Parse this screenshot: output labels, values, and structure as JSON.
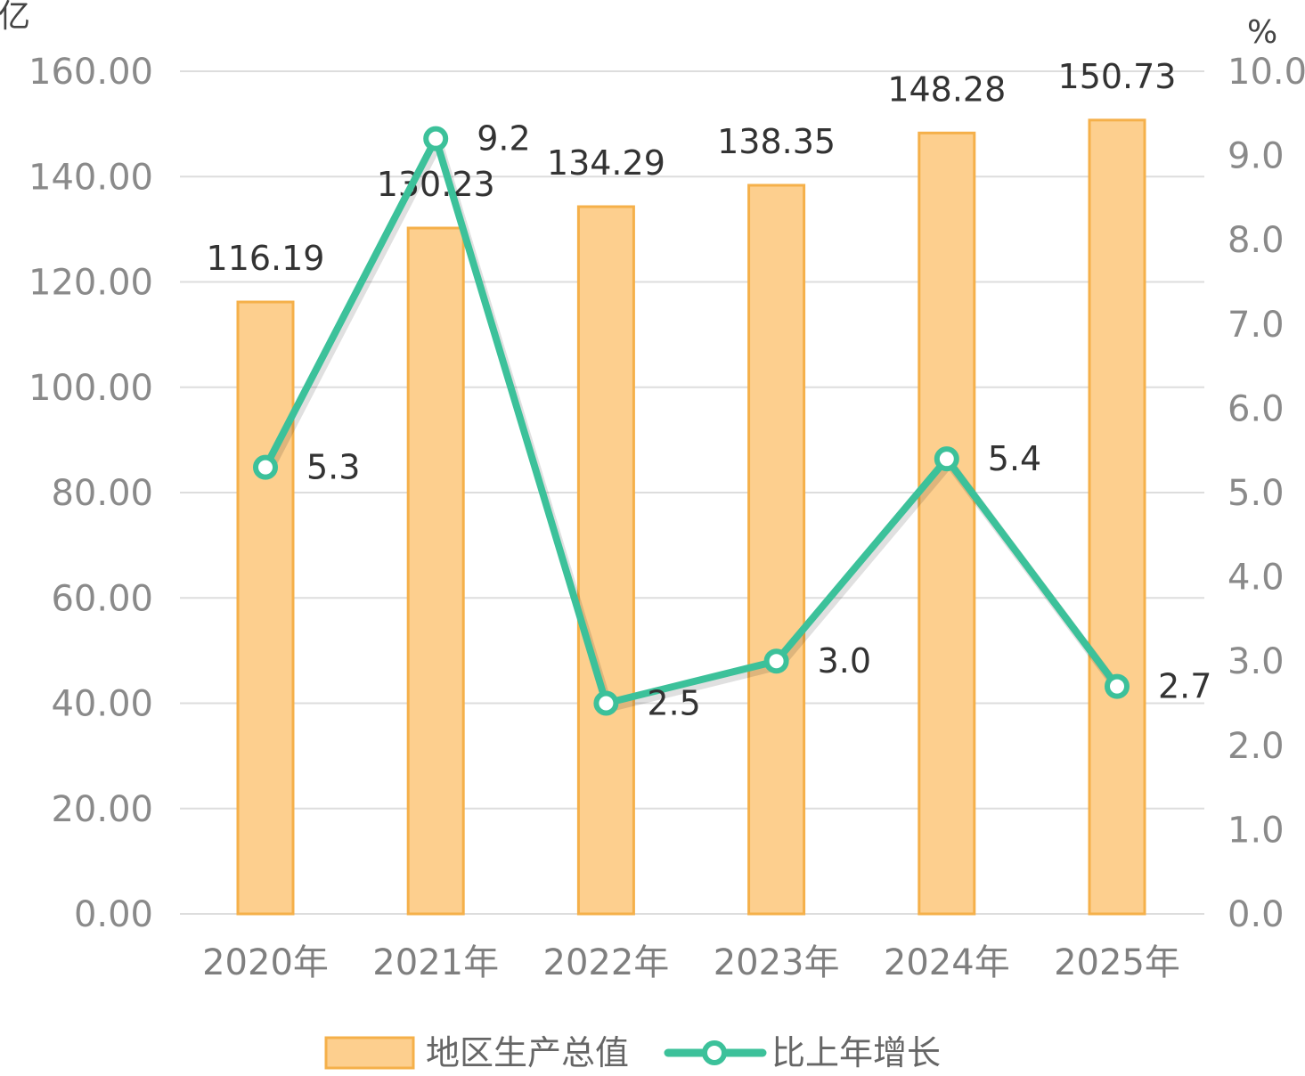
{
  "chart_data": {
    "type": "bar",
    "categories": [
      "2020年",
      "2021年",
      "2022年",
      "2023年",
      "2024年",
      "2025年"
    ],
    "series": [
      {
        "name": "地区生产总值",
        "type": "bar",
        "axis": "left",
        "values": [
          116.19,
          130.23,
          134.29,
          138.35,
          148.28,
          150.73
        ],
        "labels": [
          "116.19",
          "130.23",
          "134.29",
          "138.35",
          "148.28",
          "150.73"
        ],
        "color": "#FDCF8E",
        "border_color": "#F5B04A"
      },
      {
        "name": "比上年增长",
        "type": "line",
        "axis": "right",
        "values": [
          5.3,
          9.2,
          2.5,
          3.0,
          5.4,
          2.7
        ],
        "labels": [
          "5.3",
          "9.2",
          "2.5",
          "3.0",
          "5.4",
          "2.7"
        ],
        "color": "#3CC19A"
      }
    ],
    "y_left": {
      "unit_label": "亿",
      "ylim": [
        0,
        160
      ],
      "ticks": [
        "0.00",
        "20.00",
        "40.00",
        "60.00",
        "80.00",
        "100.00",
        "120.00",
        "140.00",
        "160.00"
      ]
    },
    "y_right": {
      "unit_label": "%",
      "ylim": [
        0,
        10
      ],
      "ticks": [
        "0.0",
        "1.0",
        "2.0",
        "3.0",
        "4.0",
        "5.0",
        "6.0",
        "7.0",
        "8.0",
        "9.0",
        "10.0"
      ]
    },
    "grid": true,
    "legend": {
      "placement": "bottom",
      "entries": [
        "地区生产总值",
        "比上年增长"
      ]
    },
    "gridline_color": "#DDDDDD"
  }
}
